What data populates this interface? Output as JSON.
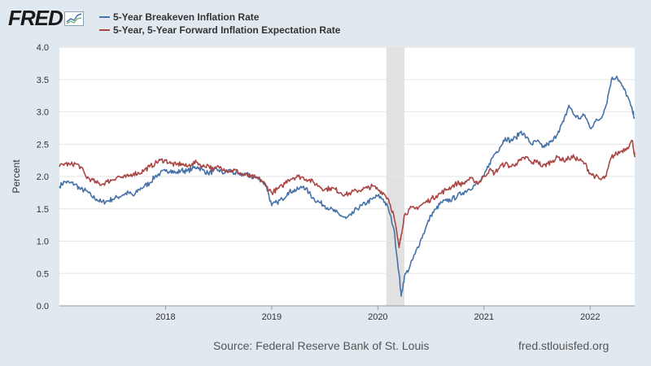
{
  "logo": {
    "text": "FRED",
    "icon": "line-chart-icon"
  },
  "footer": {
    "source": "Source: Federal Reserve Bank of St. Louis",
    "url": "fred.stlouisfed.org"
  },
  "colors": {
    "series1": "#4572a7",
    "series2": "#aa4643",
    "recession": "#e1e1e1",
    "plot_bg": "#ffffff",
    "page_bg": "#e1e9f0"
  },
  "chart_data": {
    "type": "line",
    "title": "",
    "xlabel": "",
    "ylabel": "Percent",
    "ylim": [
      0,
      4
    ],
    "xlim": [
      2017.0,
      2022.42
    ],
    "yticks": [
      "0.0",
      "0.5",
      "1.0",
      "1.5",
      "2.0",
      "2.5",
      "3.0",
      "3.5",
      "4.0"
    ],
    "xticks": [
      {
        "value": 2018,
        "label": "2018"
      },
      {
        "value": 2019,
        "label": "2019"
      },
      {
        "value": 2020,
        "label": "2020"
      },
      {
        "value": 2021,
        "label": "2021"
      },
      {
        "value": 2022,
        "label": "2022"
      }
    ],
    "recession": [
      2020.08,
      2020.25
    ],
    "series": [
      {
        "name": "5-Year Breakeven Inflation Rate",
        "color": "#4572a7",
        "x": [
          2017.0,
          2017.05,
          2017.1,
          2017.15,
          2017.2,
          2017.25,
          2017.3,
          2017.35,
          2017.4,
          2017.45,
          2017.5,
          2017.55,
          2017.6,
          2017.65,
          2017.7,
          2017.75,
          2017.8,
          2017.85,
          2017.9,
          2017.95,
          2018.0,
          2018.05,
          2018.1,
          2018.15,
          2018.2,
          2018.25,
          2018.3,
          2018.35,
          2018.4,
          2018.45,
          2018.5,
          2018.55,
          2018.6,
          2018.65,
          2018.7,
          2018.75,
          2018.8,
          2018.85,
          2018.9,
          2018.95,
          2019.0,
          2019.05,
          2019.1,
          2019.15,
          2019.2,
          2019.25,
          2019.3,
          2019.35,
          2019.4,
          2019.45,
          2019.5,
          2019.55,
          2019.6,
          2019.65,
          2019.7,
          2019.75,
          2019.8,
          2019.85,
          2019.9,
          2019.95,
          2020.0,
          2020.05,
          2020.1,
          2020.15,
          2020.2,
          2020.22,
          2020.25,
          2020.3,
          2020.35,
          2020.4,
          2020.45,
          2020.5,
          2020.55,
          2020.6,
          2020.65,
          2020.7,
          2020.75,
          2020.8,
          2020.85,
          2020.9,
          2020.95,
          2021.0,
          2021.05,
          2021.1,
          2021.15,
          2021.2,
          2021.25,
          2021.3,
          2021.35,
          2021.4,
          2021.45,
          2021.5,
          2021.55,
          2021.6,
          2021.65,
          2021.7,
          2021.75,
          2021.8,
          2021.85,
          2021.9,
          2021.95,
          2022.0,
          2022.05,
          2022.1,
          2022.15,
          2022.2,
          2022.25,
          2022.3,
          2022.35,
          2022.4,
          2022.42
        ],
        "y": [
          1.85,
          1.92,
          1.9,
          1.88,
          1.8,
          1.78,
          1.7,
          1.65,
          1.6,
          1.62,
          1.65,
          1.68,
          1.72,
          1.75,
          1.7,
          1.8,
          1.85,
          1.9,
          2.0,
          2.05,
          2.08,
          2.1,
          2.05,
          2.1,
          2.08,
          2.12,
          2.15,
          2.1,
          2.05,
          2.08,
          2.1,
          2.05,
          2.1,
          2.05,
          2.02,
          2.05,
          2.0,
          1.98,
          1.95,
          1.85,
          1.55,
          1.6,
          1.65,
          1.75,
          1.78,
          1.8,
          1.85,
          1.75,
          1.65,
          1.6,
          1.55,
          1.5,
          1.45,
          1.4,
          1.35,
          1.4,
          1.5,
          1.55,
          1.6,
          1.65,
          1.7,
          1.65,
          1.5,
          1.2,
          0.5,
          0.15,
          0.45,
          0.6,
          0.8,
          1.0,
          1.2,
          1.4,
          1.5,
          1.6,
          1.62,
          1.65,
          1.7,
          1.75,
          1.8,
          1.85,
          1.9,
          2.0,
          2.2,
          2.35,
          2.45,
          2.6,
          2.55,
          2.6,
          2.7,
          2.6,
          2.5,
          2.55,
          2.45,
          2.5,
          2.55,
          2.7,
          2.85,
          3.1,
          2.95,
          2.9,
          2.95,
          2.75,
          2.85,
          2.9,
          3.1,
          3.5,
          3.55,
          3.4,
          3.25,
          3.0,
          2.9
        ]
      },
      {
        "name": "5-Year, 5-Year Forward Inflation Expectation Rate",
        "color": "#aa4643",
        "x": [
          2017.0,
          2017.05,
          2017.1,
          2017.15,
          2017.2,
          2017.25,
          2017.3,
          2017.35,
          2017.4,
          2017.45,
          2017.5,
          2017.55,
          2017.6,
          2017.65,
          2017.7,
          2017.75,
          2017.8,
          2017.85,
          2017.9,
          2017.95,
          2018.0,
          2018.05,
          2018.1,
          2018.15,
          2018.2,
          2018.25,
          2018.3,
          2018.35,
          2018.4,
          2018.45,
          2018.5,
          2018.55,
          2018.6,
          2018.65,
          2018.7,
          2018.75,
          2018.8,
          2018.85,
          2018.9,
          2018.95,
          2019.0,
          2019.05,
          2019.1,
          2019.15,
          2019.2,
          2019.25,
          2019.3,
          2019.35,
          2019.4,
          2019.45,
          2019.5,
          2019.55,
          2019.6,
          2019.65,
          2019.7,
          2019.75,
          2019.8,
          2019.85,
          2019.9,
          2019.95,
          2020.0,
          2020.05,
          2020.1,
          2020.15,
          2020.2,
          2020.22,
          2020.25,
          2020.3,
          2020.35,
          2020.4,
          2020.45,
          2020.5,
          2020.55,
          2020.6,
          2020.65,
          2020.7,
          2020.75,
          2020.8,
          2020.85,
          2020.9,
          2020.95,
          2021.0,
          2021.05,
          2021.1,
          2021.15,
          2021.2,
          2021.25,
          2021.3,
          2021.35,
          2021.4,
          2021.45,
          2021.5,
          2021.55,
          2021.6,
          2021.65,
          2021.7,
          2021.75,
          2021.8,
          2021.85,
          2021.9,
          2021.95,
          2022.0,
          2022.05,
          2022.1,
          2022.15,
          2022.2,
          2022.25,
          2022.3,
          2022.35,
          2022.4,
          2022.42
        ],
        "y": [
          2.15,
          2.2,
          2.18,
          2.2,
          2.15,
          2.0,
          1.95,
          1.9,
          1.88,
          1.92,
          1.95,
          2.0,
          1.98,
          2.0,
          2.05,
          2.05,
          2.1,
          2.15,
          2.2,
          2.25,
          2.25,
          2.2,
          2.18,
          2.2,
          2.15,
          2.2,
          2.22,
          2.15,
          2.18,
          2.1,
          2.15,
          2.12,
          2.08,
          2.1,
          2.05,
          2.02,
          2.0,
          1.98,
          1.95,
          1.85,
          1.75,
          1.8,
          1.85,
          1.95,
          1.98,
          2.0,
          1.98,
          1.95,
          1.9,
          1.85,
          1.8,
          1.82,
          1.8,
          1.75,
          1.72,
          1.75,
          1.78,
          1.8,
          1.82,
          1.85,
          1.8,
          1.75,
          1.65,
          1.4,
          0.9,
          1.1,
          1.4,
          1.5,
          1.5,
          1.55,
          1.6,
          1.65,
          1.7,
          1.75,
          1.8,
          1.85,
          1.9,
          1.88,
          1.95,
          1.95,
          1.9,
          2.0,
          2.1,
          2.05,
          2.15,
          2.2,
          2.15,
          2.2,
          2.25,
          2.3,
          2.2,
          2.25,
          2.15,
          2.2,
          2.25,
          2.3,
          2.25,
          2.28,
          2.3,
          2.25,
          2.2,
          2.05,
          2.0,
          1.95,
          2.0,
          2.3,
          2.35,
          2.4,
          2.45,
          2.55,
          2.3
        ]
      }
    ]
  }
}
